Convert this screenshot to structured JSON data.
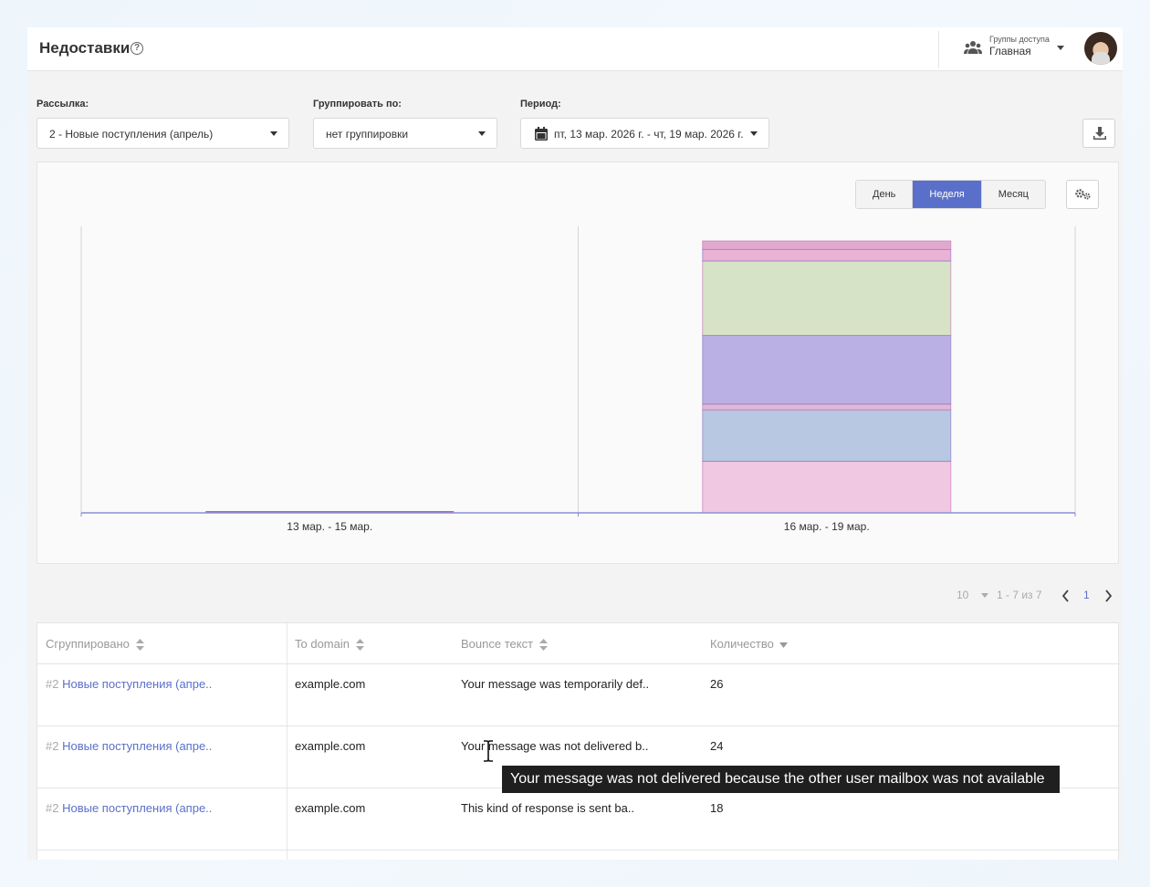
{
  "header": {
    "title": "Недоставки",
    "help_glyph": "?",
    "access_group_label": "Группы доступа",
    "access_group_value": "Главная"
  },
  "filters": {
    "mailing_label": "Рассылка:",
    "mailing_value": "2 - Новые поступления (апрель)",
    "grouping_label": "Группировать по:",
    "grouping_value": "нет группировки",
    "period_label": "Период:",
    "period_value": "пт, 13 мар. 2026 г. - чт, 19 мар. 2026 г."
  },
  "chart_controls": {
    "day": "День",
    "week": "Неделя",
    "month": "Месяц",
    "active": "Неделя"
  },
  "chart_data": {
    "type": "bar",
    "stacked": true,
    "categories": [
      "13 мар. - 15 мар.",
      "16 мар. - 19 мар."
    ],
    "series": [
      {
        "values": [
          0,
          18
        ],
        "color": "#f0c8e2"
      },
      {
        "values": [
          0,
          18
        ],
        "color": "#b8c7e2"
      },
      {
        "values": [
          0,
          2
        ],
        "color": "#e1b8d8"
      },
      {
        "values": [
          0,
          24
        ],
        "color": "#bbb0e3"
      },
      {
        "values": [
          0,
          26
        ],
        "color": "#d6e3c6"
      },
      {
        "values": [
          0,
          4
        ],
        "color": "#e8b3d4"
      },
      {
        "values": [
          0,
          3
        ],
        "color": "#e0aad0"
      }
    ],
    "grid": true,
    "legend": "none"
  },
  "pagination": {
    "page_size": "10",
    "range": "1 - 7 из 7",
    "current_page": "1"
  },
  "table": {
    "columns": [
      "Сгруппировано",
      "To domain",
      "Bounce текст",
      "Количество"
    ],
    "rows": [
      {
        "hash": "#2",
        "name": "Новые поступления (апре..",
        "domain": "example.com",
        "bounce": "Your message was temporarily def..",
        "count": "26"
      },
      {
        "hash": "#2",
        "name": "Новые поступления (апре..",
        "domain": "example.com",
        "bounce": "Your message was not delivered b..",
        "count": "24"
      },
      {
        "hash": "#2",
        "name": "Новые поступления (апре..",
        "domain": "example.com",
        "bounce": "This kind of response is sent ba..",
        "count": "18"
      }
    ]
  },
  "tooltip": {
    "text": "Your message was not delivered because the other user mailbox was not available"
  },
  "colors": {
    "accent": "#5a6fc9",
    "link": "#5a6fc9"
  }
}
